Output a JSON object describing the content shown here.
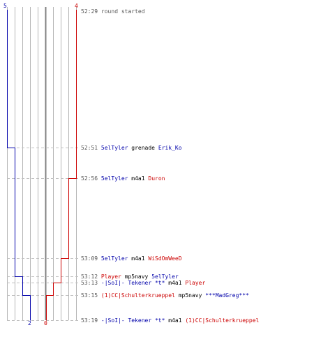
{
  "colors": {
    "team_blue": "#0000aa",
    "team_red": "#cc0000",
    "grid": "#b4b4b4",
    "center": "#808080",
    "time": "#555555"
  },
  "scores": {
    "blue_top": "5",
    "red_top": "4",
    "blue_bottom": "2",
    "red_bottom": "0"
  },
  "events": [
    {
      "time": "52:29",
      "text": "round started"
    },
    {
      "time": "52:51",
      "actor": "5elTyler",
      "weapon": "grenade",
      "victim": "Erik_Ko"
    },
    {
      "time": "52:56",
      "actor": "5elTyler",
      "weapon": "m4a1",
      "victim": "Duron"
    },
    {
      "time": "53:09",
      "actor": "5elTyler",
      "weapon": "m4a1",
      "victim": "WiSdOmWeeD"
    },
    {
      "time": "53:12",
      "actor": "Player",
      "weapon": "mp5navy",
      "victim": "5elTyler"
    },
    {
      "time": "53:13",
      "actor": "-|SoI|- Tekener *t*",
      "weapon": "m4a1",
      "victim": "Player"
    },
    {
      "time": "53:15",
      "actor": "(1)CC|Schulterkrueppel",
      "weapon": "mp5navy",
      "victim": "***MadGreg***"
    },
    {
      "time": "53:19",
      "actor": "-|SoI|- Tekener *t*",
      "weapon": "m4a1",
      "victim": "(1)CC|Schulterkrueppel"
    }
  ]
}
